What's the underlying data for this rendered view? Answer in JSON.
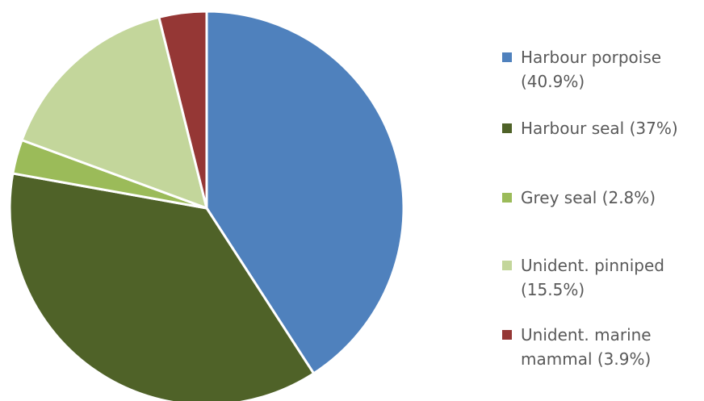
{
  "chart_data": {
    "type": "pie",
    "title": "",
    "start_angle_deg": 0,
    "direction": "clockwise",
    "legend_position": "right",
    "slices": [
      {
        "label": "Harbour porpoise (40.9%)",
        "value": 40.9,
        "color": "#4F81BD"
      },
      {
        "label": "Harbour seal (37%)",
        "value": 37.0,
        "color": "#4F6228"
      },
      {
        "label": "Grey seal (2.8%)",
        "value": 2.8,
        "color": "#9BBB59"
      },
      {
        "label": "Unident. pinniped (15.5%)",
        "value": 15.5,
        "color": "#C3D69B"
      },
      {
        "label": "Unident. marine mammal (3.9%)",
        "value": 3.9,
        "color": "#953735"
      }
    ]
  }
}
